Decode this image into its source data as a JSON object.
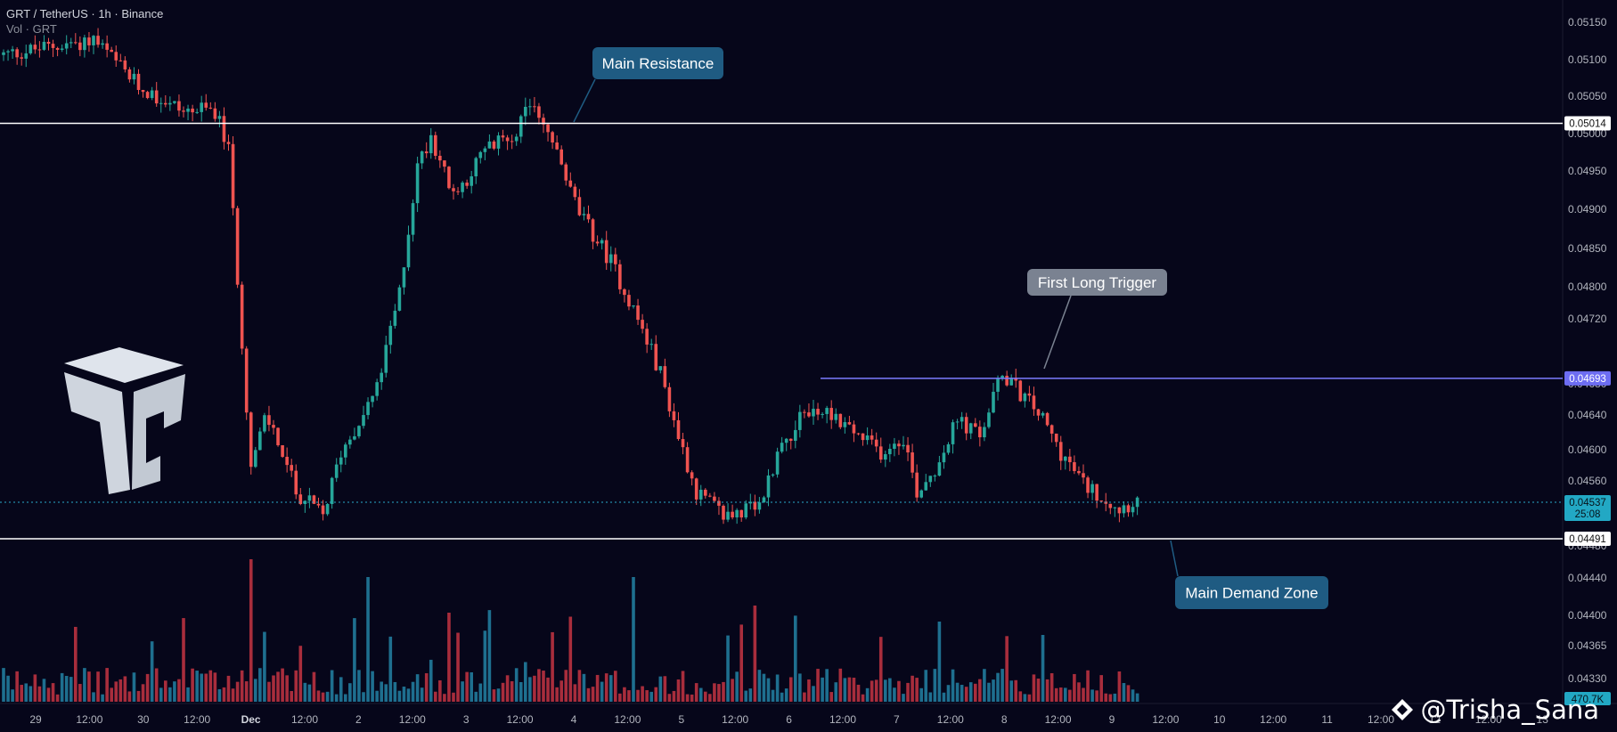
{
  "header": {
    "symbol_line": "GRT / TetherUS · 1h · Binance",
    "volume_line": "Vol · GRT"
  },
  "watermark": "@Trisha_Sana",
  "colors": {
    "background": "#06061a",
    "up": "#26a69a",
    "down": "#ef5350",
    "vol_up": "#1e6f8f",
    "vol_down": "#a82d3c",
    "level_line": "#ffffff",
    "trigger_line": "#7b7bff",
    "callout": "#1f5b82",
    "callout_gray": "#7a8291"
  },
  "chart_data": {
    "type": "candlestick",
    "price_axis": {
      "ylim": [
        0.043,
        0.0518
      ],
      "ticks": [
        "0.05150",
        "0.05100",
        "0.05050",
        "0.05000",
        "0.04950",
        "0.04900",
        "0.04850",
        "0.04800",
        "0.04720",
        "0.04680",
        "0.04640",
        "0.04600",
        "0.04560",
        "0.04480",
        "0.04440",
        "0.04400",
        "0.04365",
        "0.04330"
      ],
      "current_price": "0.04537",
      "countdown": "25:08",
      "volume_label": "470.7K"
    },
    "time_axis": {
      "labels": [
        "29",
        "12:00",
        "30",
        "12:00",
        "Dec",
        "12:00",
        "2",
        "12:00",
        "3",
        "12:00",
        "4",
        "12:00",
        "5",
        "12:00",
        "6",
        "12:00",
        "7",
        "12:00",
        "8",
        "12:00",
        "9",
        "12:00",
        "10",
        "12:00",
        "11",
        "12:00",
        "12",
        "12:00",
        "13"
      ]
    },
    "levels": [
      {
        "name": "resistance",
        "value": 0.05014,
        "label": "0.05014"
      },
      {
        "name": "trigger",
        "value": 0.04693,
        "label": "0.04693"
      },
      {
        "name": "demand",
        "value": 0.04491,
        "label": "0.04491"
      }
    ],
    "annotations": [
      {
        "text": "Main Resistance",
        "style": "callout"
      },
      {
        "text": "First Long Trigger",
        "style": "callout_gray"
      },
      {
        "text": "Main Demand Zone",
        "style": "callout"
      }
    ],
    "close_path": [
      [
        0,
        0.051
      ],
      [
        20,
        0.0512
      ],
      [
        30,
        0.0506
      ],
      [
        40,
        0.0503
      ],
      [
        47,
        0.0503
      ],
      [
        50,
        0.0498
      ],
      [
        55,
        0.0458
      ],
      [
        58,
        0.0464
      ],
      [
        60,
        0.0463
      ],
      [
        65,
        0.0455
      ],
      [
        71,
        0.0452
      ],
      [
        75,
        0.046
      ],
      [
        83,
        0.0468
      ],
      [
        88,
        0.048
      ],
      [
        92,
        0.0496
      ],
      [
        95,
        0.05
      ],
      [
        100,
        0.0492
      ],
      [
        107,
        0.0498
      ],
      [
        113,
        0.05
      ],
      [
        118,
        0.0504
      ],
      [
        122,
        0.0499
      ],
      [
        128,
        0.049
      ],
      [
        135,
        0.0484
      ],
      [
        140,
        0.0478
      ],
      [
        146,
        0.047
      ],
      [
        150,
        0.0462
      ],
      [
        154,
        0.0455
      ],
      [
        160,
        0.0452
      ],
      [
        168,
        0.0453
      ],
      [
        172,
        0.046
      ],
      [
        178,
        0.0465
      ],
      [
        184,
        0.0465
      ],
      [
        190,
        0.0462
      ],
      [
        195,
        0.046
      ],
      [
        200,
        0.0462
      ],
      [
        203,
        0.0455
      ],
      [
        207,
        0.0458
      ],
      [
        212,
        0.0464
      ],
      [
        217,
        0.0462
      ],
      [
        222,
        0.047
      ],
      [
        225,
        0.0468
      ],
      [
        230,
        0.0465
      ],
      [
        235,
        0.046
      ],
      [
        240,
        0.0456
      ],
      [
        248,
        0.0453
      ],
      [
        252,
        0.0454
      ]
    ]
  }
}
